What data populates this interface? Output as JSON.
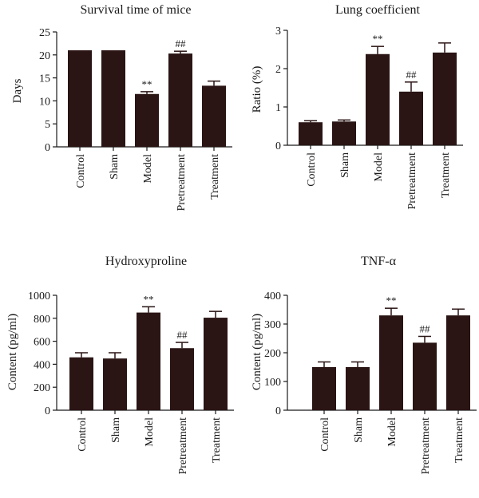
{
  "colors": {
    "bar": "#2a1414",
    "axis": "#1a1a1a",
    "background": "#ffffff"
  },
  "chart_data": [
    {
      "type": "bar",
      "title": "Survival time of mice",
      "ylabel": "Days",
      "xlabel": "",
      "categories": [
        "Control",
        "Sham",
        "Model",
        "Pretreatment",
        "Treatment"
      ],
      "values": [
        21,
        21,
        11.5,
        20.3,
        13.3
      ],
      "errors": [
        0,
        0,
        0.5,
        0.5,
        1.0
      ],
      "annotations": [
        "",
        "",
        "**",
        "##",
        ""
      ],
      "ylim": [
        0,
        25
      ],
      "yticks": [
        0,
        5,
        10,
        15,
        20,
        25
      ],
      "ytick_labels": [
        "0",
        "5",
        "10",
        "15",
        "20",
        "25"
      ],
      "grid": false
    },
    {
      "type": "bar",
      "title": "Lung coefficient",
      "ylabel": "Ratio (%)",
      "xlabel": "",
      "categories": [
        "Control",
        "Sham",
        "Model",
        "Pretreatment",
        "Treatment"
      ],
      "values": [
        0.6,
        0.62,
        2.38,
        1.4,
        2.42
      ],
      "errors": [
        0.04,
        0.04,
        0.2,
        0.25,
        0.25
      ],
      "annotations": [
        "",
        "",
        "**",
        "##",
        ""
      ],
      "ylim": [
        0,
        3
      ],
      "yticks": [
        0,
        1,
        2,
        3
      ],
      "ytick_labels": [
        "0",
        "1",
        "2",
        "3"
      ],
      "grid": false
    },
    {
      "type": "bar",
      "title": "Hydroxyproline",
      "ylabel": "Content (pg/ml)",
      "xlabel": "",
      "categories": [
        "Control",
        "Sham",
        "Model",
        "Pretreatment",
        "Treatment"
      ],
      "values": [
        460,
        450,
        850,
        540,
        805
      ],
      "errors": [
        40,
        50,
        50,
        50,
        55
      ],
      "annotations": [
        "",
        "",
        "**",
        "##",
        ""
      ],
      "ylim": [
        0,
        1000
      ],
      "yticks": [
        0,
        200,
        400,
        600,
        800,
        1000
      ],
      "ytick_labels": [
        "0",
        "200",
        "400",
        "600",
        "800",
        "1000"
      ],
      "grid": false
    },
    {
      "type": "bar",
      "title": "TNF-α",
      "ylabel": "Content (pg/ml)",
      "xlabel": "",
      "categories": [
        "Control",
        "Sham",
        "Model",
        "Pretreatment",
        "Treatment"
      ],
      "values": [
        150,
        150,
        330,
        235,
        330
      ],
      "errors": [
        18,
        18,
        25,
        22,
        22
      ],
      "annotations": [
        "",
        "",
        "**",
        "##",
        ""
      ],
      "ylim": [
        0,
        400
      ],
      "yticks": [
        0,
        100,
        200,
        300,
        400
      ],
      "ytick_labels": [
        "0",
        "100",
        "200",
        "300",
        "400"
      ],
      "grid": false
    }
  ]
}
